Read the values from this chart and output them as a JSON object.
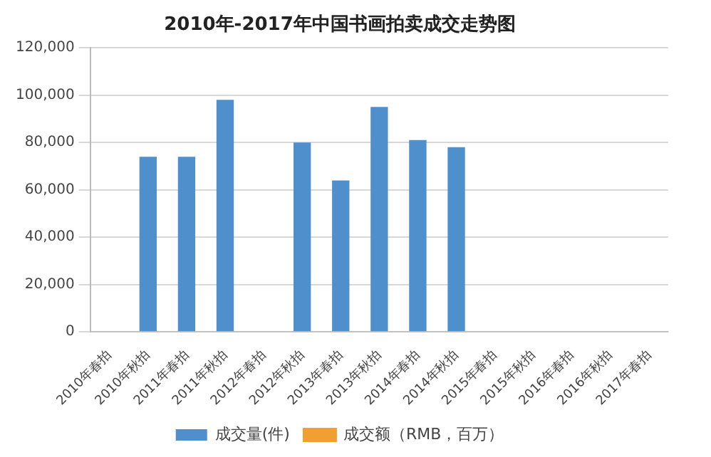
{
  "chart_data": {
    "type": "bar",
    "title": "2010年-2017年中国书画拍卖成交走势图",
    "categories": [
      "2010年春拍",
      "2010年秋拍",
      "2011年春拍",
      "2011年秋拍",
      "2012年春拍",
      "2012年秋拍",
      "2013年春拍",
      "2013年秋拍",
      "2014年春拍",
      "2014年秋拍",
      "2015年春拍",
      "2015年秋拍",
      "2016年春拍",
      "2016年秋拍",
      "2017年春拍"
    ],
    "series": [
      {
        "name": "成交量(件)",
        "color": "#4f8fcb",
        "values": [
          null,
          74000,
          74000,
          98000,
          null,
          80000,
          64000,
          95000,
          81000,
          78000,
          null,
          null,
          null,
          null,
          null
        ]
      },
      {
        "name": "成交额（RMB，百万）",
        "type": "line",
        "color": "#f0a030",
        "marker": "square",
        "values": [
          null,
          null,
          null,
          null,
          null,
          null,
          null,
          null,
          null,
          null,
          null,
          null,
          null,
          null,
          null
        ]
      }
    ],
    "ylim": [
      0,
      120000
    ],
    "yticks": [
      {
        "value": 0,
        "label": "0"
      },
      {
        "value": 20000,
        "label": "20,000"
      },
      {
        "value": 40000,
        "label": "40,000"
      },
      {
        "value": 60000,
        "label": "60,000"
      },
      {
        "value": 80000,
        "label": "80,000"
      },
      {
        "value": 100000,
        "label": "100,000"
      },
      {
        "value": 120000,
        "label": "120,000"
      }
    ],
    "grid": "y",
    "legend": "bottom"
  }
}
